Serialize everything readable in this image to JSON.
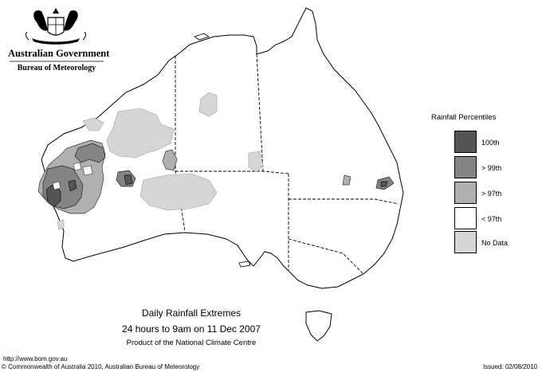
{
  "header": {
    "gov_name": "Australian Government",
    "bureau_name": "Bureau of Meteorology"
  },
  "map": {
    "title_line1": "Daily Rainfall Extremes",
    "title_line2": "24 hours to 9am on 11 Dec 2007",
    "title_line3": "Product of the National Climate Centre"
  },
  "legend": {
    "title": "Rainfall Percentiles",
    "items": [
      {
        "label": "100th",
        "color": "#555555"
      },
      {
        "label": "> 99th",
        "color": "#848484"
      },
      {
        "label": "> 97th",
        "color": "#b0b0b0"
      },
      {
        "label": "< 97th",
        "color": "#ffffff"
      },
      {
        "label": "No Data",
        "color": "#d6d6d6"
      }
    ]
  },
  "footer": {
    "url": "http://www.bom.gov.au",
    "copyright": "© Commonwealth of Australia 2010, Australian Bureau of Meteorology",
    "issued": "Issued: 02/08/2010"
  }
}
